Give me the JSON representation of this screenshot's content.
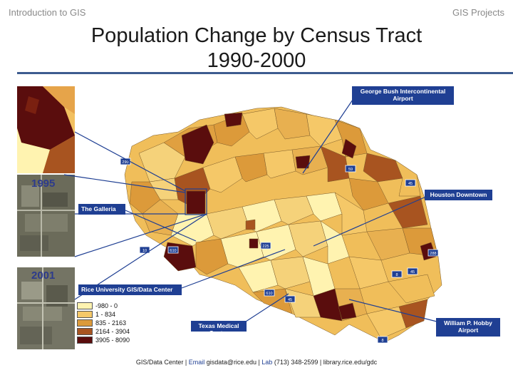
{
  "header": {
    "left": "Introduction to GIS",
    "right": "GIS Projects"
  },
  "title": {
    "line1": "Population Change by Census Tract",
    "line2": "1990-2000"
  },
  "insets": {
    "year_top": "1995",
    "year_bottom": "2001"
  },
  "callouts": {
    "airport_iah": [
      "George Bush Intercontinental",
      "Airport"
    ],
    "downtown": "Houston Downtown",
    "galleria": "The Galleria",
    "rice": "Rice University GIS/Data Center",
    "medical": "Texas Medical Center",
    "hobby": [
      "William P. Hobby",
      "Airport"
    ]
  },
  "legend": {
    "items": [
      {
        "label": "-980 - 0",
        "color": "#fff3b0"
      },
      {
        "label": "1 - 834",
        "color": "#f5c868"
      },
      {
        "label": "835 - 2163",
        "color": "#dc9a3a"
      },
      {
        "label": "2164 - 3904",
        "color": "#a85420"
      },
      {
        "label": "3905 - 8090",
        "color": "#5a0d0d"
      }
    ]
  },
  "footer": {
    "p1": "GIS/Data Center | ",
    "email_label": "Email",
    "p2": " gisdata@rice.edu | ",
    "lab_label": "Lab",
    "p3": " (713) 348-2599 | library.rice.edu/gdc"
  },
  "highway_shields": [
    "290",
    "59",
    "45",
    "10",
    "610",
    "225",
    "288",
    "8"
  ]
}
